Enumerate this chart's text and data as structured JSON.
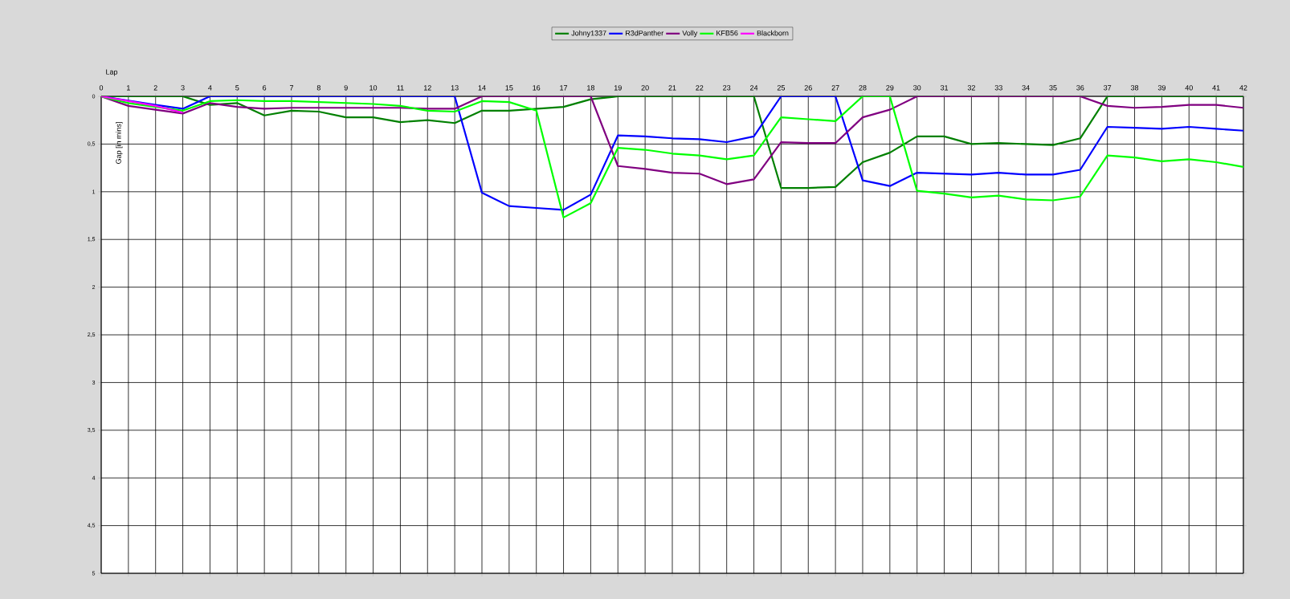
{
  "chart_data": {
    "type": "line",
    "xlabel": "Lap",
    "ylabel": "Gap [in mins]",
    "x": [
      0,
      1,
      2,
      3,
      4,
      5,
      6,
      7,
      8,
      9,
      10,
      11,
      12,
      13,
      14,
      15,
      16,
      17,
      18,
      19,
      20,
      21,
      22,
      23,
      24,
      25,
      26,
      27,
      28,
      29,
      30,
      31,
      32,
      33,
      34,
      35,
      36,
      37,
      38,
      39,
      40,
      41,
      42
    ],
    "xlim": [
      0,
      42
    ],
    "xticks": [
      0,
      1,
      2,
      3,
      4,
      5,
      6,
      7,
      8,
      9,
      10,
      11,
      12,
      13,
      14,
      15,
      16,
      17,
      18,
      19,
      20,
      21,
      22,
      23,
      24,
      25,
      26,
      27,
      28,
      29,
      30,
      31,
      32,
      33,
      34,
      35,
      36,
      37,
      38,
      39,
      40,
      41,
      42
    ],
    "ylim": [
      5,
      0
    ],
    "yticks": [
      0,
      {
        "value": 0.5,
        "label": "0,5"
      },
      1,
      {
        "value": 1.5,
        "label": "1,5"
      },
      2,
      {
        "value": 2.5,
        "label": "2,5"
      },
      3,
      {
        "value": 3.5,
        "label": "3,5"
      },
      4,
      {
        "value": 4.5,
        "label": "4,5"
      },
      5
    ],
    "grid": true,
    "legend": "top",
    "line_style": "solid",
    "series": [
      {
        "name": "Johny1337",
        "color": "#008000",
        "values": [
          0,
          0,
          0,
          0,
          0.09,
          0.07,
          0.2,
          0.15,
          0.16,
          0.22,
          0.22,
          0.27,
          0.25,
          0.28,
          0.15,
          0.15,
          0.13,
          0.11,
          0.03,
          0,
          0,
          0,
          0,
          0,
          0,
          0.96,
          0.96,
          0.95,
          0.69,
          0.59,
          0.42,
          0.42,
          0.5,
          0.49,
          0.5,
          0.51,
          0.44,
          0,
          0,
          0,
          0,
          0,
          0
        ]
      },
      {
        "name": "R3dPanther",
        "color": "#0000ff",
        "values": [
          0,
          null,
          0.09,
          0.13,
          0,
          0,
          0,
          0,
          0,
          0,
          0,
          0,
          0,
          0,
          1.01,
          1.15,
          1.17,
          1.19,
          1.03,
          0.41,
          0.42,
          0.44,
          0.45,
          0.48,
          0.42,
          0,
          0,
          0,
          0.88,
          0.94,
          0.8,
          0.81,
          0.82,
          0.8,
          0.82,
          0.82,
          0.77,
          0.32,
          0.33,
          0.34,
          0.32,
          0.34,
          0.36
        ]
      },
      {
        "name": "Volly",
        "color": "#800080",
        "values": [
          0,
          0.1,
          0.14,
          0.18,
          0.07,
          0.11,
          0.13,
          0.12,
          0.12,
          0.12,
          0.12,
          0.12,
          0.13,
          0.13,
          0,
          0,
          0,
          0,
          0,
          0.73,
          0.76,
          0.8,
          0.81,
          0.92,
          0.87,
          0.48,
          0.49,
          0.49,
          0.22,
          0.14,
          0,
          0,
          0,
          0,
          0,
          0,
          0,
          0.1,
          0.12,
          0.11,
          0.09,
          0.09,
          0.12
        ]
      },
      {
        "name": "KFB56",
        "color": "#00ff00",
        "values": [
          0,
          0.07,
          0.11,
          0.15,
          0.05,
          0.04,
          0.05,
          0.05,
          0.06,
          0.07,
          0.08,
          0.1,
          0.15,
          0.16,
          0.05,
          0.06,
          0.15,
          1.27,
          1.12,
          0.54,
          0.56,
          0.6,
          0.62,
          0.66,
          0.62,
          0.22,
          0.24,
          0.26,
          0,
          0,
          0.99,
          1.02,
          1.06,
          1.04,
          1.08,
          1.09,
          1.05,
          0.62,
          0.64,
          0.68,
          0.66,
          0.69,
          0.74
        ]
      },
      {
        "name": "Blackborn",
        "color": "#ff00ff",
        "x": [
          0,
          1,
          2,
          3
        ],
        "values": [
          0,
          0.05,
          0.1,
          0.17
        ]
      }
    ]
  }
}
